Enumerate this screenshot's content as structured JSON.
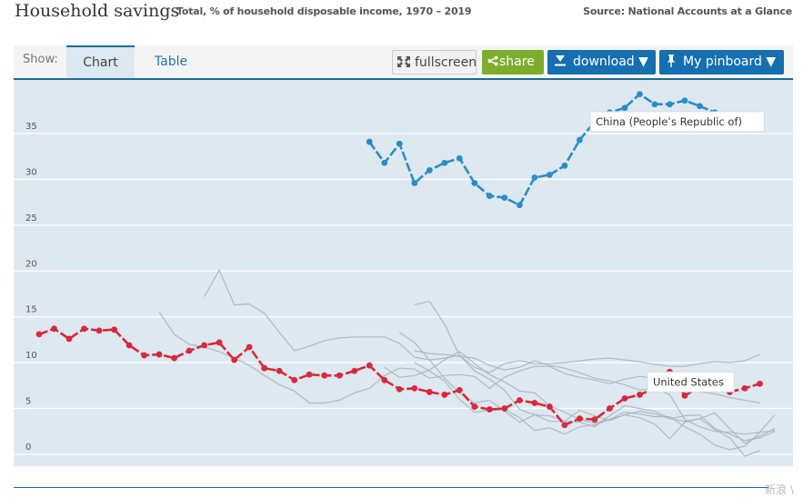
{
  "header": {
    "title": "Household savings",
    "subtitle": "Total, % of household disposable income, 1970 – 2019",
    "source": "Source: National Accounts at a Glance"
  },
  "toolbar": {
    "show_label": "Show:",
    "tabs": [
      {
        "label": "Chart",
        "active": true
      },
      {
        "label": "Table",
        "active": false
      }
    ],
    "fullscreen_label": "fullscreen",
    "share_label": "share",
    "download_label": "download ▼",
    "pinboard_label": "My pinboard ▼"
  },
  "colors": {
    "accent": "#156fb0",
    "share_green": "#7cae2e",
    "plot_bg": "#dde8f0",
    "us_red": "#d9293b",
    "china_blue": "#2a8dc8",
    "other_grey": "#a9b6bf"
  },
  "watermark": "新浪 \\",
  "chart_data": {
    "type": "line",
    "title": "Household savings",
    "subtitle": "Total, % of household disposable income, 1970 – 2019",
    "xlabel": "",
    "ylabel": "",
    "xlim": [
      1969.5,
      2019.5
    ],
    "ylim": [
      -1,
      40.5
    ],
    "xticks": [
      1970,
      1975,
      1980,
      1985,
      1990,
      1995,
      2000,
      2005,
      2010,
      2015
    ],
    "yticks": [
      0,
      5,
      10,
      15,
      20,
      25,
      30,
      35
    ],
    "grid": true,
    "highlighted_series": [
      {
        "name": "United States",
        "label": "United States",
        "color": "#d9293b",
        "x": [
          1970,
          1971,
          1972,
          1973,
          1974,
          1975,
          1976,
          1977,
          1978,
          1979,
          1980,
          1981,
          1982,
          1983,
          1984,
          1985,
          1986,
          1987,
          1988,
          1989,
          1990,
          1991,
          1992,
          1993,
          1994,
          1995,
          1996,
          1997,
          1998,
          1999,
          2000,
          2001,
          2002,
          2003,
          2004,
          2005,
          2006,
          2007,
          2008,
          2009,
          2010,
          2011,
          2012,
          2013,
          2014,
          2015,
          2016,
          2017,
          2018
        ],
        "values": [
          13.1,
          13.7,
          12.6,
          13.7,
          13.5,
          13.6,
          11.9,
          10.8,
          10.9,
          10.5,
          11.3,
          11.9,
          12.2,
          10.3,
          11.7,
          9.4,
          9.1,
          8.1,
          8.7,
          8.6,
          8.6,
          9.1,
          9.7,
          8.1,
          7.1,
          7.2,
          6.8,
          6.5,
          7.0,
          5.2,
          4.9,
          5.0,
          5.9,
          5.6,
          5.2,
          3.2,
          3.9,
          3.8,
          5.0,
          6.1,
          6.5,
          7.2,
          9.0,
          6.4,
          7.4,
          7.6,
          6.8,
          7.2,
          7.7
        ]
      },
      {
        "name": "China (People's Republic of)",
        "label": "China (People’s Republic of)",
        "color": "#2a8dc8",
        "x": [
          1992,
          1993,
          1994,
          1995,
          1996,
          1997,
          1998,
          1999,
          2000,
          2001,
          2002,
          2003,
          2004,
          2005,
          2006,
          2007,
          2008,
          2009,
          2010,
          2011,
          2012,
          2013,
          2014,
          2015,
          2016
        ],
        "values": [
          34.1,
          31.8,
          33.9,
          29.6,
          31.0,
          31.8,
          32.3,
          29.6,
          28.2,
          28.0,
          27.2,
          30.2,
          30.5,
          31.5,
          34.3,
          36.3,
          37.3,
          37.8,
          39.3,
          38.2,
          38.2,
          38.6,
          38.0,
          37.3,
          36.2
        ]
      }
    ],
    "background_series": [
      {
        "x": [
          1981,
          1982,
          1983,
          1984,
          1985,
          1986,
          1987,
          1988,
          1989,
          1990,
          1991,
          1992,
          1993,
          1994,
          1995,
          1996,
          1997,
          1998,
          1999,
          2000,
          2001,
          2002,
          2003,
          2004,
          2005,
          2006,
          2007,
          2008,
          2009,
          2010,
          2011,
          2012,
          2013,
          2014,
          2015,
          2016,
          2017,
          2018,
          2019
        ],
        "values": [
          17.2,
          20.1,
          16.3,
          16.4,
          15.4,
          13.3,
          11.3,
          11.8,
          12.4,
          12.7,
          12.8,
          12.8,
          12.8,
          12.1,
          10.6,
          10.3,
          10.5,
          10.8,
          9.5,
          8.9,
          9.9,
          10.2,
          9.9,
          9.9,
          10.0,
          10.2,
          10.4,
          10.5,
          10.3,
          10.1,
          9.8,
          9.6,
          9.6,
          9.9,
          10.1,
          10.0,
          10.2,
          10.9,
          null
        ]
      },
      {
        "x": [
          1978,
          1979,
          1980,
          1981,
          1982,
          1983,
          1984,
          1985,
          1986,
          1987,
          1988,
          1989,
          1990,
          1991,
          1992,
          1993,
          1994,
          1995,
          1996,
          1997,
          1998,
          1999,
          2000,
          2001,
          2002,
          2003,
          2004,
          2005,
          2006,
          2007,
          2008,
          2009,
          2010,
          2011,
          2012,
          2013,
          2014,
          2015,
          2016,
          2017,
          2018,
          2019
        ],
        "values": [
          15.5,
          13.1,
          12.0,
          11.7,
          11.2,
          10.5,
          9.7,
          8.6,
          7.6,
          6.9,
          5.6,
          5.6,
          5.9,
          6.7,
          7.2,
          8.6,
          9.4,
          9.3,
          8.3,
          8.6,
          8.7,
          8.5,
          7.2,
          8.4,
          9.1,
          9.6,
          9.6,
          8.8,
          8.4,
          8.1,
          7.7,
          8.2,
          8.5,
          8.3,
          7.8,
          7.2,
          6.8,
          6.6,
          6.2,
          5.9,
          5.6,
          null
        ]
      },
      {
        "x": [
          1995,
          1996,
          1997,
          1998,
          1999,
          2000,
          2001,
          2002,
          2003,
          2004,
          2005,
          2006,
          2007,
          2008,
          2009,
          2010,
          2011,
          2012,
          2013,
          2014,
          2015,
          2016,
          2017,
          2018,
          2019
        ],
        "values": [
          16.3,
          16.7,
          14.2,
          10.8,
          9.1,
          8.2,
          7.0,
          4.9,
          4.3,
          3.6,
          3.6,
          3.5,
          3.0,
          4.2,
          5.3,
          5.0,
          4.7,
          3.9,
          3.6,
          3.9,
          2.7,
          1.8,
          -0.2,
          0.4,
          null
        ]
      },
      {
        "x": [
          1994,
          1995,
          1996,
          1997,
          1998,
          1999,
          2000,
          2001,
          2002,
          2003,
          2004,
          2005,
          2006,
          2007,
          2008,
          2009,
          2010,
          2011,
          2012,
          2013,
          2014,
          2015,
          2016,
          2017,
          2018,
          2019
        ],
        "values": [
          13.3,
          12.2,
          10.3,
          8.3,
          6.7,
          5.6,
          5.9,
          4.7,
          3.5,
          4.3,
          4.2,
          3.6,
          4.8,
          4.2,
          3.7,
          4.3,
          4.7,
          4.4,
          3.9,
          4.2,
          4.3,
          2.8,
          2.2,
          1.5,
          1.8,
          2.5
        ]
      },
      {
        "x": [
          1995,
          1996,
          1997,
          1998,
          1999,
          2000,
          2001,
          2002,
          2003,
          2004,
          2005,
          2006,
          2007,
          2008,
          2009,
          2010,
          2011,
          2012,
          2013,
          2014,
          2015,
          2016,
          2017,
          2018,
          2019
        ],
        "values": [
          11.3,
          11.0,
          10.9,
          10.7,
          10.5,
          9.7,
          9.2,
          9.5,
          10.2,
          9.7,
          9.4,
          8.9,
          8.3,
          8.0,
          7.6,
          7.0,
          7.2,
          6.5,
          3.8,
          3.0,
          2.5,
          2.4,
          2.2,
          2.4,
          2.6
        ]
      },
      {
        "x": [
          1995,
          1996,
          1997,
          1998,
          1999,
          2000,
          2001,
          2002,
          2003,
          2004,
          2005,
          2006,
          2007,
          2008,
          2009,
          2010,
          2011,
          2012,
          2013,
          2014,
          2015,
          2016,
          2017,
          2018,
          2019
        ],
        "values": [
          10.0,
          9.1,
          8.0,
          6.0,
          4.6,
          4.8,
          4.9,
          4.0,
          2.6,
          2.9,
          2.2,
          3.0,
          3.2,
          3.8,
          4.3,
          4.0,
          3.3,
          1.7,
          3.5,
          3.9,
          4.5,
          2.8,
          1.2,
          2.0,
          2.8
        ]
      },
      {
        "x": [
          1993,
          1994,
          1995,
          1996,
          1997,
          1998,
          1999,
          2000,
          2001,
          2002,
          2003,
          2004,
          2005,
          2006,
          2007,
          2008,
          2009,
          2010,
          2011,
          2012,
          2013,
          2014,
          2015,
          2016,
          2017,
          2018,
          2019
        ],
        "values": [
          9.5,
          8.4,
          8.6,
          9.2,
          10.3,
          11.2,
          9.9,
          8.7,
          7.9,
          6.9,
          6.7,
          5.3,
          4.6,
          3.8,
          3.4,
          3.8,
          4.6,
          4.4,
          4.1,
          4.1,
          3.0,
          2.2,
          1.0,
          0.5,
          0.9,
          2.4,
          4.3
        ]
      }
    ],
    "annotations": [
      {
        "text": "China (People’s Republic of)",
        "series": "China (People's Republic of)",
        "anchor_x": 2012.5,
        "anchor_y": 36.3
      },
      {
        "text": "United States",
        "series": "United States",
        "anchor_x": 2013.4,
        "anchor_y": 7.9
      }
    ]
  }
}
